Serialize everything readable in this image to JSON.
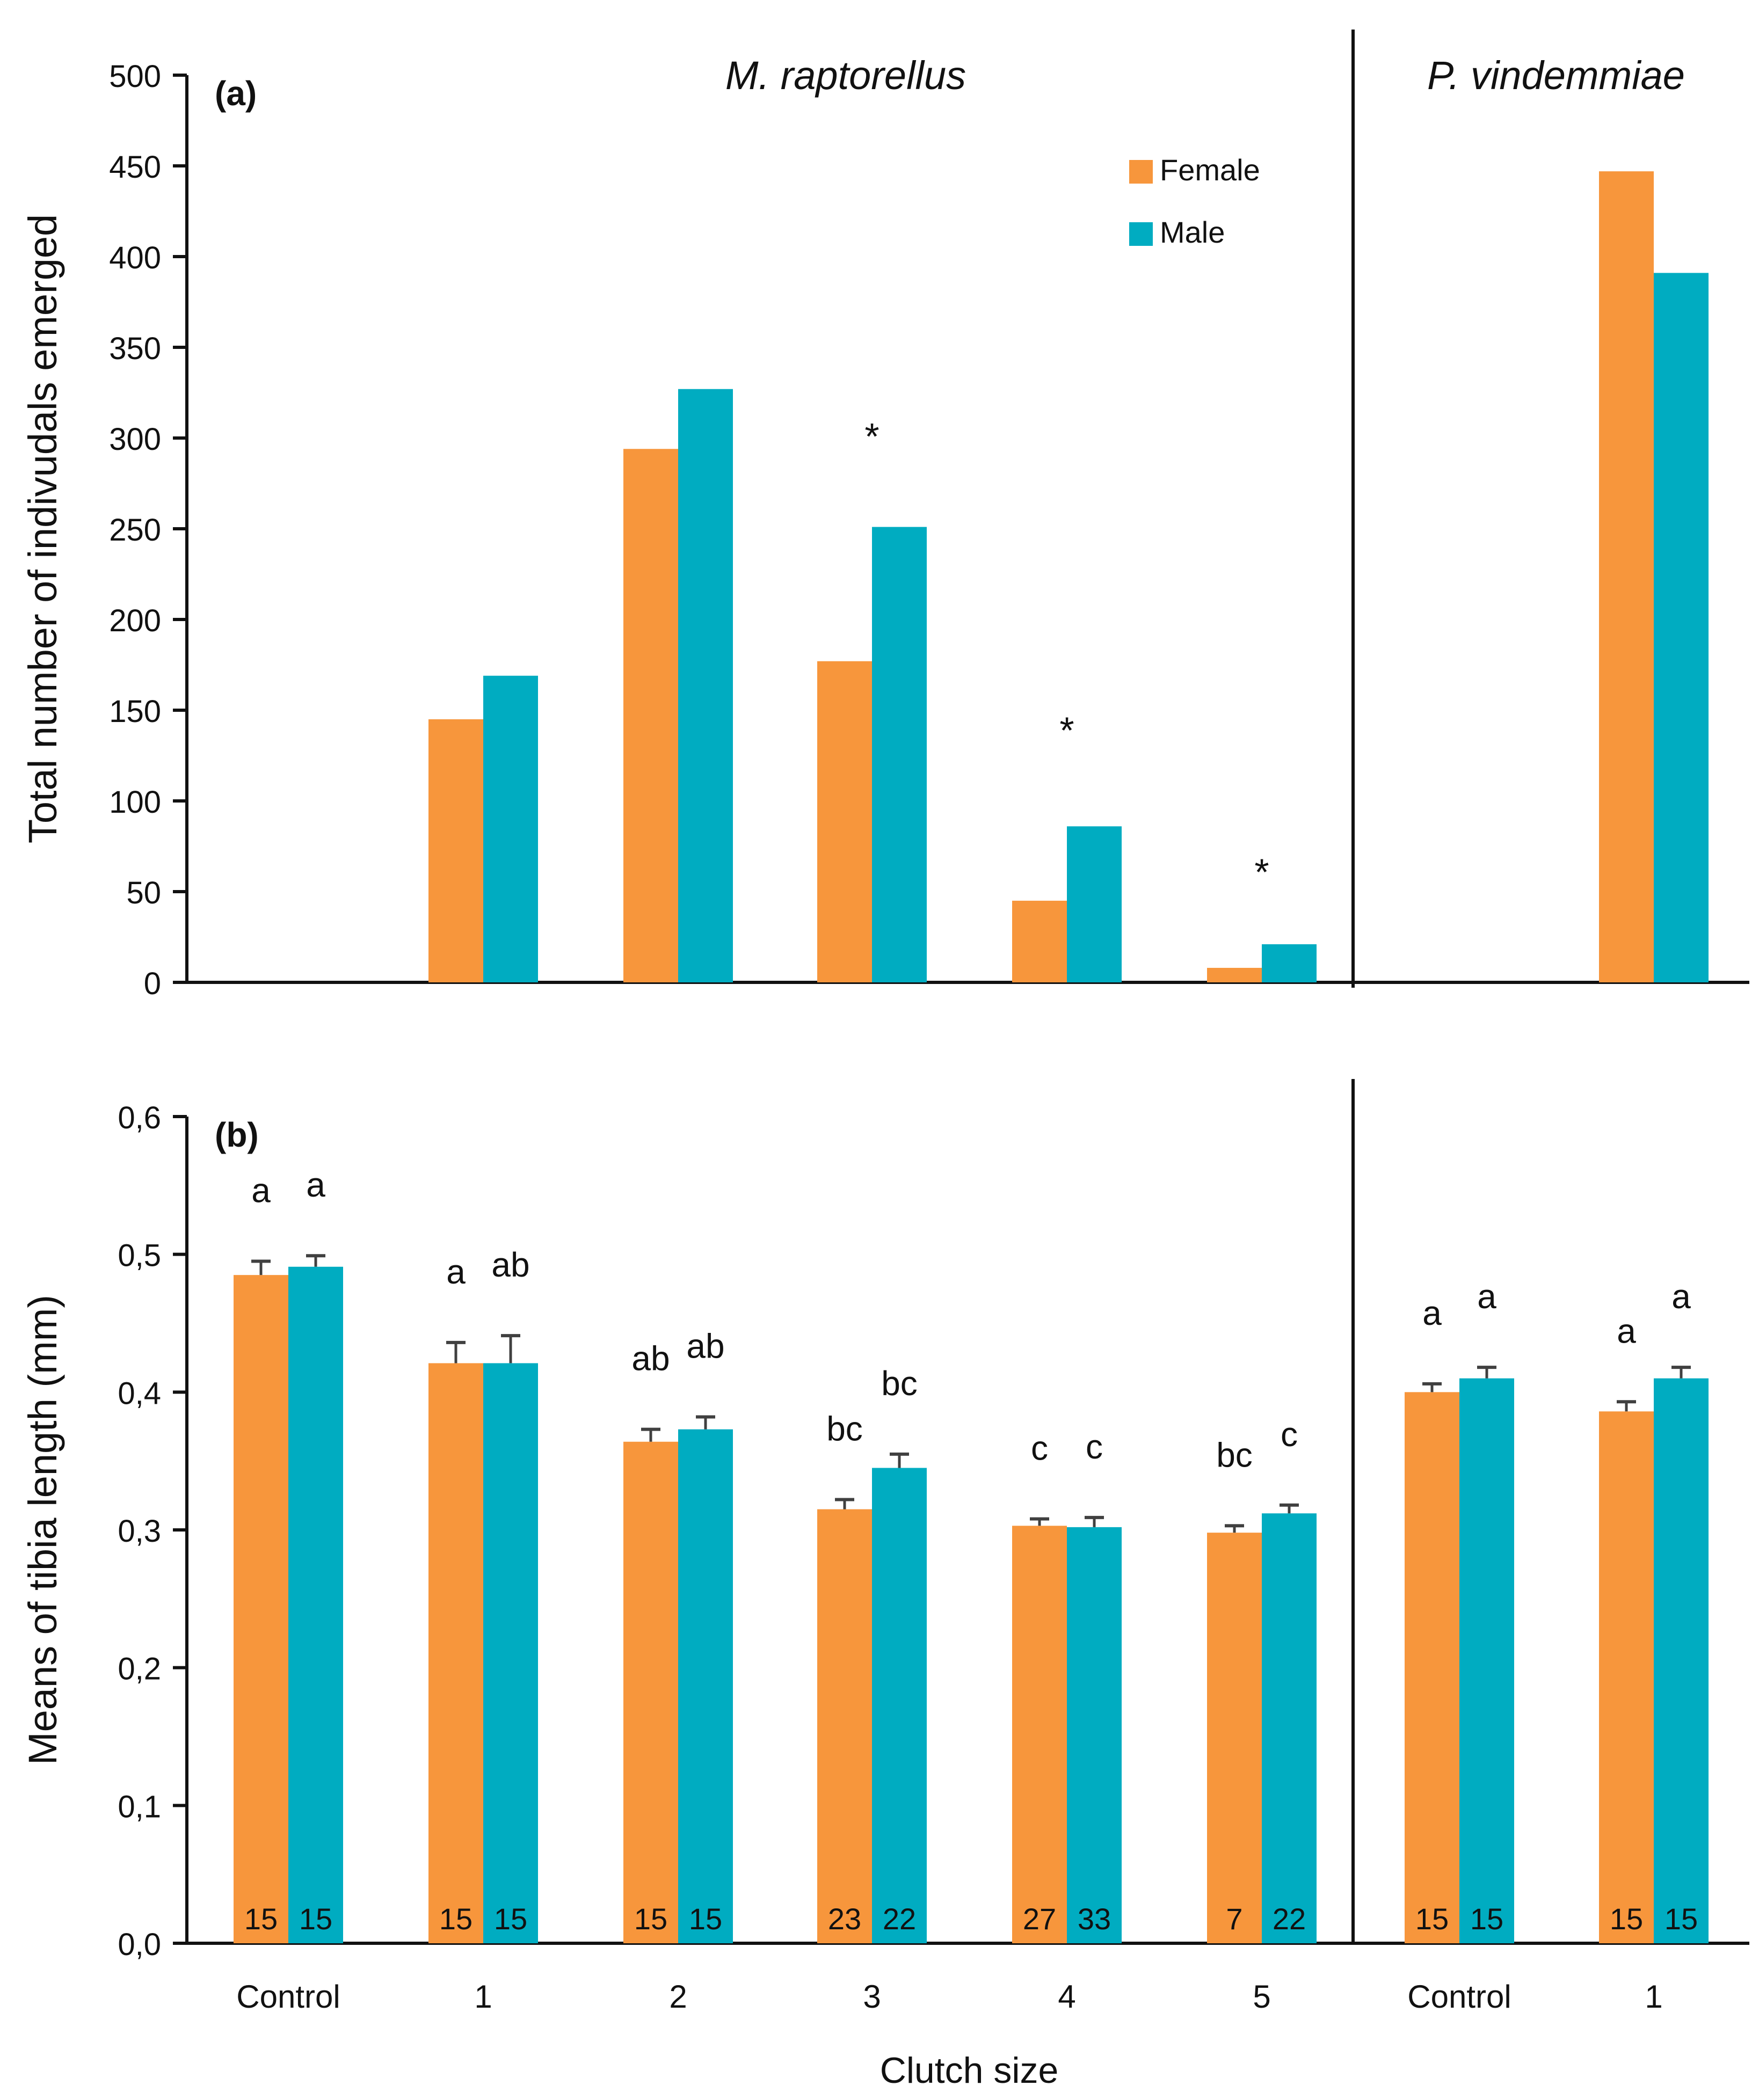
{
  "colors": {
    "female": "#F7963C",
    "male": "#00ACC1",
    "axis": "#111111"
  },
  "chart_data": [
    {
      "type": "bar",
      "panel_label": "(a)",
      "ylabel": "Total number of indivudals emerged",
      "ylim": [
        0,
        500
      ],
      "yticks": [
        "0",
        "50",
        "100",
        "150",
        "200",
        "250",
        "300",
        "350",
        "400",
        "450",
        "500"
      ],
      "categories": [
        "Control",
        "1",
        "2",
        "3",
        "4",
        "5",
        "Control",
        "1"
      ],
      "groups": [
        {
          "title": "M. raptorellus",
          "categories": [
            0,
            1,
            2,
            3,
            4,
            5
          ]
        },
        {
          "title": "P. vindemmiae",
          "categories": [
            6,
            7
          ]
        }
      ],
      "legend": {
        "position": "top-right of M. raptorellus section",
        "entries": [
          "Female",
          "Male"
        ]
      },
      "series": [
        {
          "name": "Female",
          "color": "#F7963C",
          "values": [
            0,
            145,
            294,
            177,
            45,
            8,
            0,
            447
          ]
        },
        {
          "name": "Male",
          "color": "#00ACC1",
          "values": [
            0,
            169,
            327,
            251,
            86,
            21,
            0,
            391
          ]
        }
      ],
      "annotations": [
        {
          "text": "*",
          "category": 3,
          "value": 305
        },
        {
          "text": "*",
          "category": 4,
          "value": 143
        },
        {
          "text": "*",
          "category": 5,
          "value": 65
        }
      ]
    },
    {
      "type": "bar",
      "panel_label": "(b)",
      "ylabel": "Means of tibia length (mm)",
      "xlabel": "Clutch size",
      "ylim": [
        0,
        0.6
      ],
      "yticks": [
        "0,0",
        "0,1",
        "0,2",
        "0,3",
        "0,4",
        "0,5",
        "0,6"
      ],
      "categories": [
        "Control",
        "1",
        "2",
        "3",
        "4",
        "5",
        "Control",
        "1"
      ],
      "series": [
        {
          "name": "Female",
          "color": "#F7963C",
          "values": [
            0.485,
            0.421,
            0.364,
            0.315,
            0.303,
            0.298,
            0.4,
            0.386
          ],
          "errors": [
            0.01,
            0.015,
            0.009,
            0.007,
            0.005,
            0.005,
            0.006,
            0.007
          ],
          "letters": [
            "a",
            "a",
            "ab",
            "bc",
            "c",
            "bc",
            "a",
            "a"
          ],
          "n": [
            "15",
            "15",
            "15",
            "23",
            "27",
            "7",
            "15",
            "15"
          ]
        },
        {
          "name": "Male",
          "color": "#00ACC1",
          "values": [
            0.491,
            0.421,
            0.373,
            0.345,
            0.302,
            0.312,
            0.41,
            0.41
          ],
          "errors": [
            0.008,
            0.02,
            0.009,
            0.01,
            0.007,
            0.006,
            0.008,
            0.008
          ],
          "letters": [
            "a",
            "ab",
            "ab",
            "bc",
            "c",
            "c",
            "a",
            "a"
          ],
          "n": [
            "15",
            "15",
            "15",
            "22",
            "33",
            "22",
            "15",
            "15"
          ]
        }
      ]
    }
  ]
}
